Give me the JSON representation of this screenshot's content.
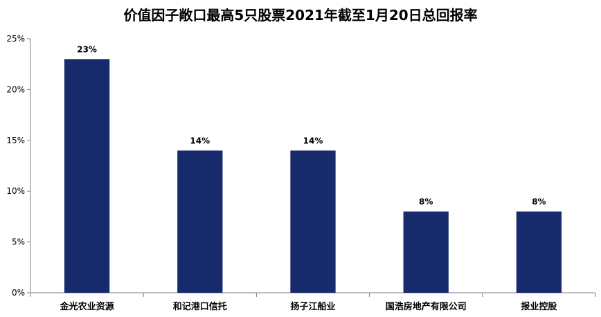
{
  "chart_data": {
    "type": "bar",
    "title": "价值因子敞口最高5只股票2021年截至1月20日总回报率",
    "xlabel": "",
    "ylabel": "",
    "categories": [
      "金光农业资源",
      "和记港口信托",
      "扬子江船业",
      "国浩房地产有限公司",
      "报业控股"
    ],
    "values": [
      23,
      14,
      14,
      8,
      8
    ],
    "data_labels": [
      "23%",
      "14%",
      "14%",
      "8%",
      "8%"
    ],
    "ylim": [
      0,
      25
    ],
    "yticks": [
      0,
      5,
      10,
      15,
      20,
      25
    ],
    "ytick_labels": [
      "0%",
      "5%",
      "10%",
      "15%",
      "20%",
      "25%"
    ],
    "grid": false,
    "legend": "none",
    "bar_color": "#172A6B"
  }
}
